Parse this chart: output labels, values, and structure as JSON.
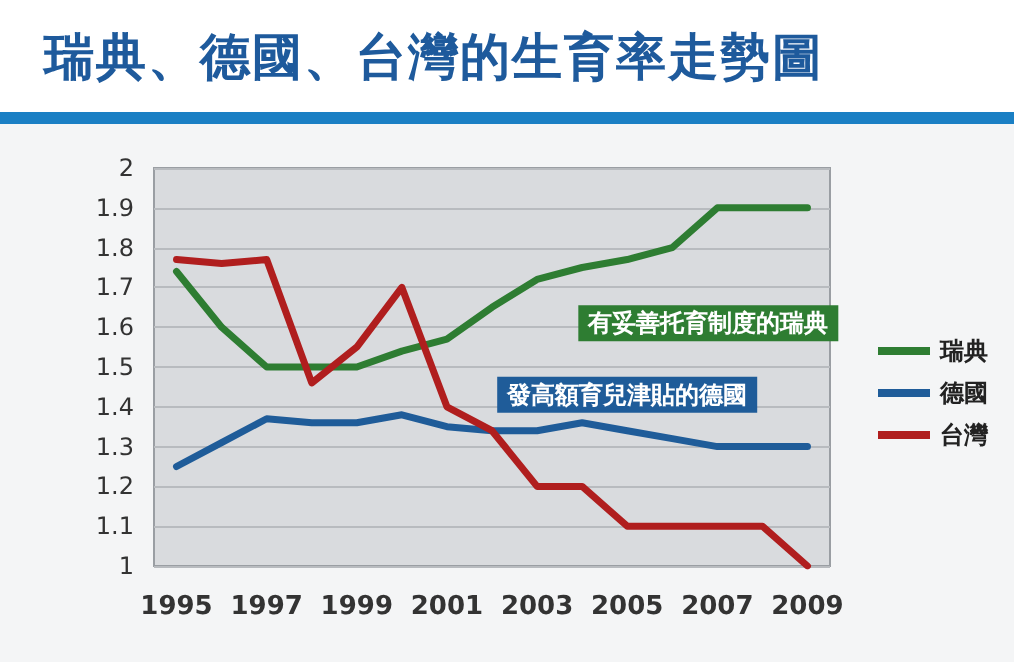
{
  "chart_data": {
    "type": "line",
    "title": "瑞典、德國、台灣的生育率走勢圖",
    "categories": [
      "1995",
      null,
      "1997",
      null,
      "1999",
      null,
      "2001",
      null,
      "2003",
      null,
      "2005",
      null,
      "2007",
      null,
      "2009"
    ],
    "series": [
      {
        "name": "瑞典",
        "color": "#2e7d32",
        "values": [
          1.74,
          1.6,
          1.5,
          1.5,
          1.5,
          1.54,
          1.57,
          1.65,
          1.72,
          1.75,
          1.77,
          1.8,
          1.9,
          1.9,
          1.9
        ]
      },
      {
        "name": "德國",
        "color": "#1f5c99",
        "values": [
          1.25,
          1.31,
          1.37,
          1.36,
          1.36,
          1.38,
          1.35,
          1.34,
          1.34,
          1.36,
          1.34,
          1.32,
          1.3,
          1.3,
          1.3
        ]
      },
      {
        "name": "台灣",
        "color": "#b01e1e",
        "values": [
          1.77,
          1.76,
          1.77,
          1.46,
          1.55,
          1.7,
          1.4,
          1.34,
          1.2,
          1.2,
          1.1,
          1.1,
          1.1,
          1.1,
          1.0
        ]
      }
    ],
    "ylim": [
      1,
      2
    ],
    "yticks": [
      1,
      1.1,
      1.2,
      1.3,
      1.4,
      1.5,
      1.6,
      1.7,
      1.8,
      1.9,
      2
    ],
    "annotations": [
      "有妥善托育制度的瑞典",
      "發高額育兒津貼的德國"
    ],
    "grid": "y",
    "legend": "right",
    "marker": "none",
    "line_style": "solid"
  }
}
